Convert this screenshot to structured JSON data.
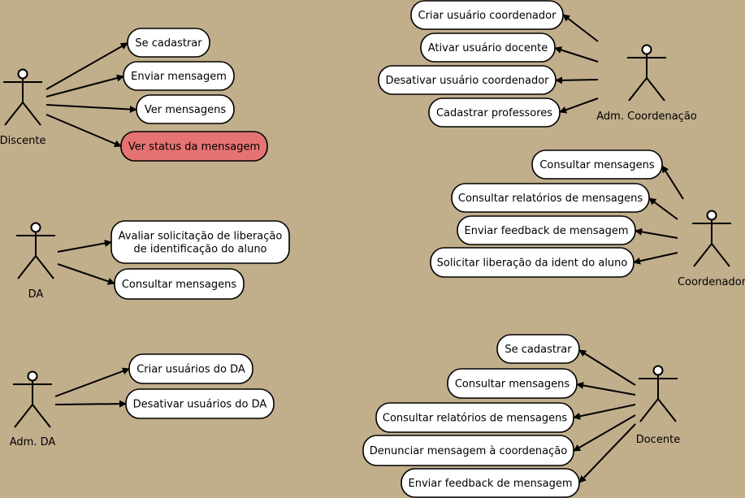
{
  "colors": {
    "background": "#c1ae8b",
    "usecase_fill": "#ffffff",
    "highlight_fill": "#e67373",
    "stroke": "#000000"
  },
  "actors": {
    "discente": "Discente",
    "adm_coordenacao": "Adm. Coordenação",
    "coordenador": "Coordenador",
    "da": "DA",
    "adm_da": "Adm. DA",
    "docente": "Docente"
  },
  "usecases": {
    "discente": [
      "Se cadastrar",
      "Enviar mensagem",
      "Ver mensagens",
      "Ver status da mensagem"
    ],
    "adm_coordenacao": [
      "Criar usuário coordenador",
      "Ativar usuário docente",
      "Desativar usuário coordenador",
      "Cadastrar professores"
    ],
    "coordenador": [
      "Consultar mensagens",
      "Consultar relatórios de mensagens",
      "Enviar feedback de mensagem",
      "Solicitar liberação da ident do aluno"
    ],
    "da": [
      [
        "Avaliar solicitação de liberação",
        "de identificação do aluno"
      ],
      "Consultar mensagens"
    ],
    "adm_da": [
      "Criar usuários do DA",
      "Desativar usuários do DA"
    ],
    "docente": [
      "Se cadastrar",
      "Consultar mensagens",
      "Consultar relatórios de mensagens",
      "Denunciar mensagem à coordenação",
      "Enviar feedback de mensagem"
    ]
  },
  "highlighted_usecase": "Ver status da mensagem"
}
